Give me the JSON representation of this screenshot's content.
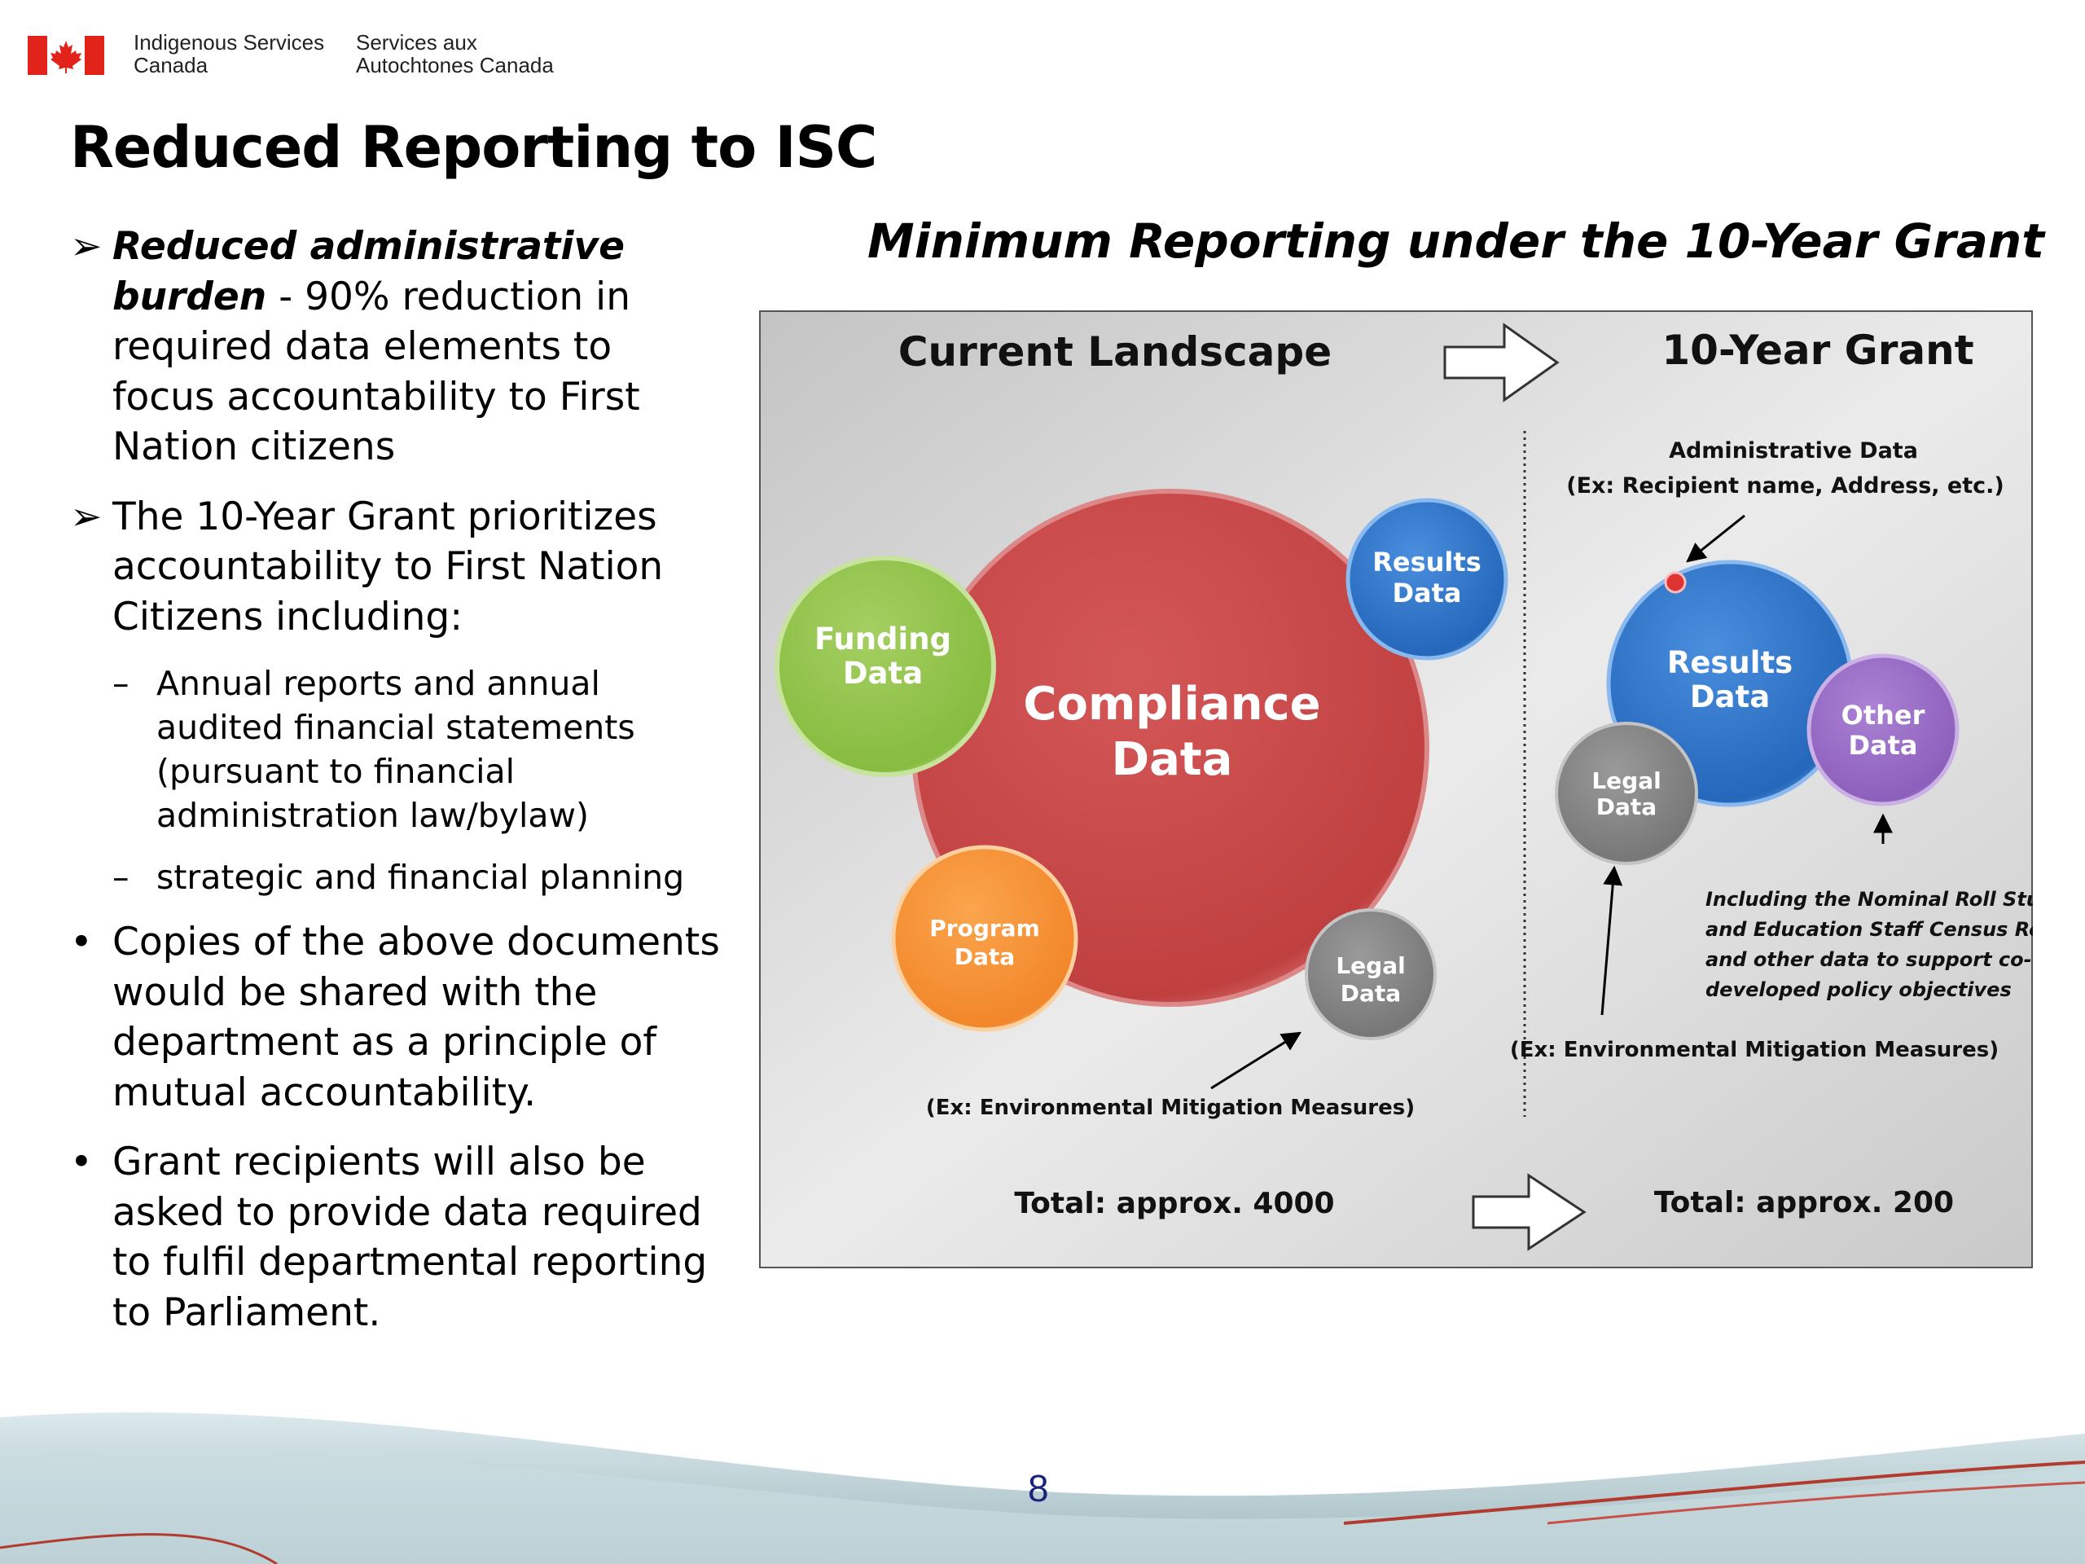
{
  "header": {
    "department_en_line1": "Indigenous Services",
    "department_en_line2": "Canada",
    "department_fr_line1": "Services aux",
    "department_fr_line2": "Autochtones Canada"
  },
  "slide": {
    "title": "Reduced Reporting to ISC",
    "page_number": "8"
  },
  "bullets": [
    {
      "marker": "➢",
      "bold_italic": "Reduced administrative burden",
      "text": " - 90% reduction in required data elements to focus accountability to First Nation citizens"
    },
    {
      "marker": "➢",
      "text": "The 10-Year Grant prioritizes accountability to First Nation Citizens including:"
    },
    {
      "marker": "–",
      "text": "Annual reports and annual audited financial statements (pursuant to financial administration law/bylaw)"
    },
    {
      "marker": "–",
      "text": "strategic and financial planning"
    },
    {
      "marker": "•",
      "text": "Copies of the above documents would be shared with the department as a principle of mutual accountability."
    },
    {
      "marker": "•",
      "text": "Grant recipients will also be asked to provide data required to fulfil departmental reporting to Parliament."
    }
  ],
  "diagram": {
    "title": "Minimum Reporting under the 10-Year Grant",
    "left_heading": "Current Landscape",
    "right_heading": "10-Year Grant",
    "compliance_l1": "Compliance",
    "compliance_l2": "Data",
    "funding_l1": "Funding",
    "funding_l2": "Data",
    "results_l1": "Results",
    "results_l2": "Data",
    "program_l1": "Program",
    "program_l2": "Data",
    "legal_l1": "Legal",
    "legal_l2": "Data",
    "other_l1": "Other",
    "other_l2": "Data",
    "admin_data": "Administrative Data",
    "admin_example": "(Ex: Recipient name, Address, etc.)",
    "env_example": "(Ex: Environmental Mitigation Measures)",
    "other_note_l1": "Including the Nominal Roll Student",
    "other_note_l2": "and Education Staff Census Report",
    "other_note_l3": "and other data to support co-",
    "other_note_l4": "developed policy objectives",
    "total_left": "Total: approx. 4000",
    "total_right": "Total: approx. 200"
  },
  "colors": {
    "canada_red": "#e1231a",
    "compliance": "#c94646",
    "funding": "#92c44b",
    "results": "#2f76c8",
    "program": "#f59335",
    "legal": "#8a8a8a",
    "other": "#9b6fc6",
    "page_number": "#1a237e"
  },
  "icons": [
    "canada-flag-icon",
    "right-arrow-icon",
    "arrow-pointer-icon"
  ]
}
